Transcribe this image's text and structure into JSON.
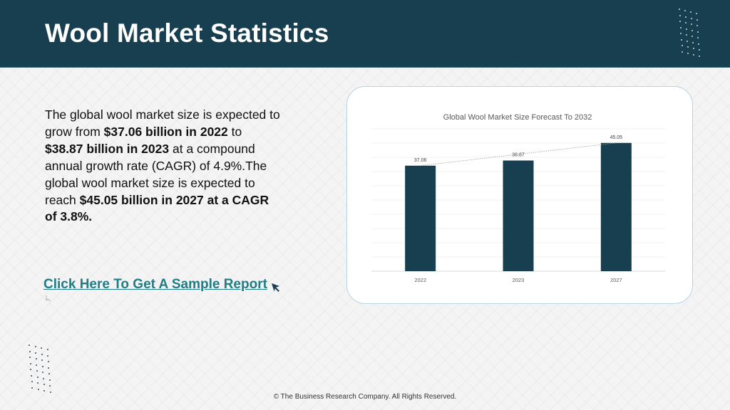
{
  "header": {
    "title": "Wool Market Statistics"
  },
  "content": {
    "description_parts": [
      {
        "text": "The global wool market size is expected to grow from ",
        "bold": false
      },
      {
        "text": "$37.06 billion in 2022",
        "bold": true
      },
      {
        "text": " to ",
        "bold": false
      },
      {
        "text": "$38.87 billion in 2023",
        "bold": true
      },
      {
        "text": " at a compound annual growth rate (CAGR) of 4.9%.The global wool market size is expected to reach ",
        "bold": false
      },
      {
        "text": "$45.05 billion in 2027 at a CAGR of 3.8%.",
        "bold": true
      }
    ],
    "cta_label": "Click Here To Get A Sample Report"
  },
  "chart_data": {
    "type": "bar",
    "title": "Global Wool Market Size Forecast To 2032",
    "categories": [
      "2022",
      "2023",
      "2027"
    ],
    "values": [
      37.06,
      38.87,
      45.05
    ],
    "value_labels": [
      "37.06",
      "38.87",
      "45.05"
    ],
    "ylim": [
      0,
      50
    ],
    "grid": true,
    "trendline": true,
    "bar_color": "#173f50"
  },
  "footer": {
    "copyright": "© The Business Research Company. All Rights Reserved."
  },
  "colors": {
    "header_bg": "#173f50",
    "link": "#1f7d86",
    "card_border": "#b7d3e4"
  }
}
